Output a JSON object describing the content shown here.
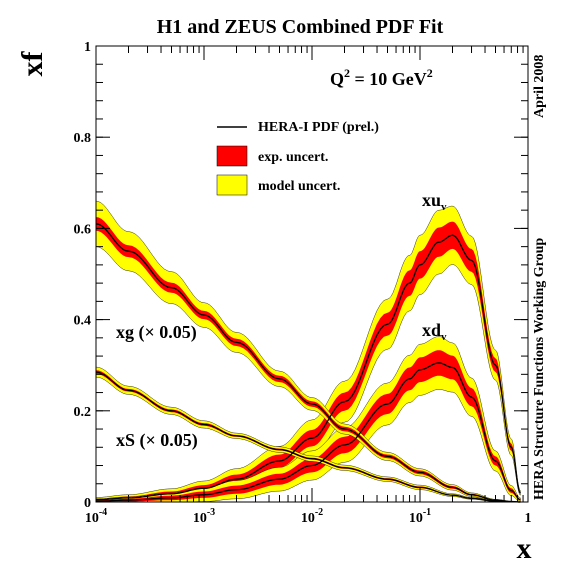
{
  "chart_data": {
    "type": "line",
    "title": "H1 and ZEUS Combined PDF Fit",
    "xlabel": "x",
    "ylabel": "xf",
    "x_scale": "log",
    "xlim": [
      0.0001,
      1
    ],
    "ylim": [
      0,
      1
    ],
    "x_ticks": [
      {
        "value": 0.0001,
        "base": "10",
        "exp": "-4"
      },
      {
        "value": 0.001,
        "base": "10",
        "exp": "-3"
      },
      {
        "value": 0.01,
        "base": "10",
        "exp": "-2"
      },
      {
        "value": 0.1,
        "base": "10",
        "exp": "-1"
      },
      {
        "value": 1,
        "base": "1",
        "exp": ""
      }
    ],
    "y_ticks": [
      "0",
      "0.2",
      "0.4",
      "0.6",
      "0.8",
      "1"
    ],
    "grid": false,
    "legend_position": "top-center",
    "legend": [
      {
        "label": "HERA-I PDF (prel.)",
        "kind": "line",
        "color": "#000000"
      },
      {
        "label": "exp. uncert.",
        "kind": "box",
        "color": "#ff0000"
      },
      {
        "label": "model uncert.",
        "kind": "box",
        "color": "#ffff00"
      }
    ],
    "q2_label": "Q",
    "q2_exp": "2",
    "q2_value": " = 10 GeV",
    "q2_unit_exp": "2",
    "side_labels": {
      "right_top": "April 2008",
      "right_bottom": "HERA Structure Functions Working Group"
    },
    "series": [
      {
        "name": "xu",
        "subscript": "v",
        "x": [
          0.0001,
          0.0002,
          0.0005,
          0.001,
          0.002,
          0.005,
          0.01,
          0.02,
          0.05,
          0.08,
          0.1,
          0.15,
          0.2,
          0.3,
          0.5,
          0.7,
          0.85
        ],
        "y": [
          0.005,
          0.009,
          0.018,
          0.03,
          0.05,
          0.09,
          0.14,
          0.22,
          0.39,
          0.48,
          0.52,
          0.57,
          0.585,
          0.53,
          0.3,
          0.12,
          0.02
        ],
        "exp": [
          0.002,
          0.003,
          0.005,
          0.007,
          0.01,
          0.014,
          0.018,
          0.02,
          0.025,
          0.028,
          0.03,
          0.032,
          0.03,
          0.025,
          0.015,
          0.008,
          0.002
        ],
        "model": [
          0.003,
          0.004,
          0.006,
          0.009,
          0.013,
          0.018,
          0.022,
          0.025,
          0.03,
          0.033,
          0.035,
          0.038,
          0.034,
          0.028,
          0.018,
          0.01,
          0.003
        ]
      },
      {
        "name": "xd",
        "subscript": "v",
        "x": [
          0.0001,
          0.0002,
          0.0005,
          0.001,
          0.002,
          0.005,
          0.01,
          0.02,
          0.05,
          0.08,
          0.1,
          0.15,
          0.2,
          0.3,
          0.5,
          0.7,
          0.85
        ],
        "y": [
          0.002,
          0.004,
          0.009,
          0.016,
          0.027,
          0.05,
          0.08,
          0.125,
          0.215,
          0.27,
          0.29,
          0.305,
          0.295,
          0.23,
          0.09,
          0.025,
          0.005
        ],
        "exp": [
          0.002,
          0.003,
          0.005,
          0.007,
          0.009,
          0.012,
          0.015,
          0.018,
          0.022,
          0.025,
          0.027,
          0.028,
          0.026,
          0.02,
          0.01,
          0.005,
          0.002
        ],
        "model": [
          0.003,
          0.004,
          0.006,
          0.008,
          0.011,
          0.014,
          0.017,
          0.02,
          0.024,
          0.027,
          0.029,
          0.03,
          0.028,
          0.022,
          0.012,
          0.006,
          0.002
        ]
      },
      {
        "name": "xg (× 0.05)",
        "x": [
          0.0001,
          0.0002,
          0.0005,
          0.001,
          0.002,
          0.005,
          0.01,
          0.02,
          0.05,
          0.1,
          0.2,
          0.3,
          0.5,
          0.7,
          0.85
        ],
        "y": [
          0.61,
          0.55,
          0.47,
          0.41,
          0.35,
          0.27,
          0.215,
          0.16,
          0.1,
          0.065,
          0.032,
          0.016,
          0.004,
          0.001,
          0.0
        ],
        "exp": [
          0.015,
          0.013,
          0.011,
          0.009,
          0.008,
          0.007,
          0.006,
          0.005,
          0.004,
          0.004,
          0.003,
          0.002,
          0.001,
          0.0005,
          0.0
        ],
        "model": [
          0.035,
          0.03,
          0.024,
          0.018,
          0.014,
          0.01,
          0.008,
          0.006,
          0.005,
          0.004,
          0.003,
          0.002,
          0.001,
          0.0005,
          0.0
        ]
      },
      {
        "name": "xS (× 0.05)",
        "x": [
          0.0001,
          0.0002,
          0.0005,
          0.001,
          0.002,
          0.005,
          0.01,
          0.02,
          0.05,
          0.1,
          0.2,
          0.3,
          0.5,
          0.7,
          0.85
        ],
        "y": [
          0.285,
          0.245,
          0.2,
          0.17,
          0.145,
          0.115,
          0.095,
          0.075,
          0.05,
          0.032,
          0.015,
          0.008,
          0.002,
          0.0005,
          0.0
        ],
        "exp": [
          0.004,
          0.003,
          0.003,
          0.003,
          0.002,
          0.002,
          0.002,
          0.002,
          0.002,
          0.002,
          0.001,
          0.001,
          0.0005,
          0.0,
          0.0
        ],
        "model": [
          0.007,
          0.006,
          0.005,
          0.005,
          0.004,
          0.004,
          0.004,
          0.004,
          0.003,
          0.003,
          0.002,
          0.001,
          0.0005,
          0.0,
          0.0
        ]
      }
    ]
  }
}
